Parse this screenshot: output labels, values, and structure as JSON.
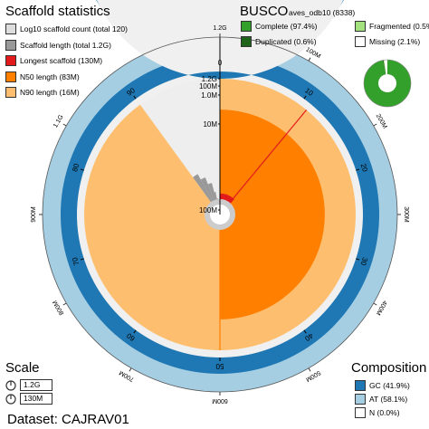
{
  "headings": {
    "scaffold_stats": "Scaffold statistics",
    "busco": "BUSCO",
    "busco_lineage": "aves_odb10 (8338)",
    "scale": "Scale",
    "composition": "Composition",
    "dataset": "Dataset: CAJRAV01"
  },
  "legend_scaffold": [
    {
      "label": "Log10 scaffold count (total 120)",
      "color": "#dddddd"
    },
    {
      "label": "Scaffold length (total 1.2G)",
      "color": "#999999"
    },
    {
      "label": "Longest scaffold (130M)",
      "color": "#e31a1c"
    },
    {
      "label": "N50 length (83M)",
      "color": "#ff7f00"
    },
    {
      "label": "N90 length (16M)",
      "color": "#fdbf6f"
    }
  ],
  "legend_busco": [
    {
      "label": "Complete (97.4%)",
      "color": "#33a02c"
    },
    {
      "label": "Fragmented (0.5%)",
      "color": "#a3e27f"
    },
    {
      "label": "Duplicated (0.6%)",
      "color": "#20641c"
    },
    {
      "label": "Missing (2.1%)",
      "color": "#ffffff"
    }
  ],
  "scale": [
    {
      "label": "1.2G",
      "icon": "circle-scale-icon"
    },
    {
      "label": "130M",
      "icon": "circle-scale-icon"
    }
  ],
  "legend_composition": [
    {
      "label": "GC (41.9%)",
      "color": "#1f78b4"
    },
    {
      "label": "AT (58.1%)",
      "color": "#a6cee3"
    },
    {
      "label": "N (0.0%)",
      "color": "#ffffff"
    }
  ],
  "chart_data": {
    "type": "snail",
    "total_length": "1.2G",
    "total_length_bp": 1200000000,
    "scaffold_count": 120,
    "longest_scaffold": "130M",
    "n50_length": "83M",
    "n90_length": "16M",
    "gc_percent": 41.9,
    "at_percent": 58.1,
    "n_percent": 0.0,
    "outer_tick_labels": [
      "1.2G",
      "100M",
      "200M",
      "300M",
      "400M",
      "500M",
      "600M",
      "700M",
      "800M",
      "900M",
      "1.1G"
    ],
    "percent_tick_labels": [
      "0",
      "10",
      "20",
      "30",
      "40",
      "50",
      "60",
      "70",
      "80",
      "90"
    ],
    "radial_scale_labels": [
      "1.2G",
      "100M",
      "1.0M",
      "10M",
      "100M"
    ],
    "scaffold_length_profile_pct": [
      0,
      2,
      5,
      8,
      12,
      16,
      20,
      25,
      30,
      35,
      40,
      45,
      50,
      55,
      60,
      65,
      70,
      75,
      80,
      85,
      88,
      90,
      92,
      94,
      96,
      97,
      98,
      99,
      99.5,
      100
    ],
    "scaffold_length_profile_M": [
      130,
      128,
      125,
      120,
      115,
      110,
      105,
      100,
      95,
      90,
      86,
      83,
      80,
      76,
      72,
      68,
      60,
      50,
      40,
      30,
      25,
      16,
      12,
      8,
      4,
      2,
      1,
      0.5,
      0.2,
      0.1
    ],
    "busco": {
      "complete": 97.4,
      "duplicated": 0.6,
      "fragmented": 0.5,
      "missing": 2.1,
      "lineage": "aves_odb10",
      "total": 8338
    }
  }
}
